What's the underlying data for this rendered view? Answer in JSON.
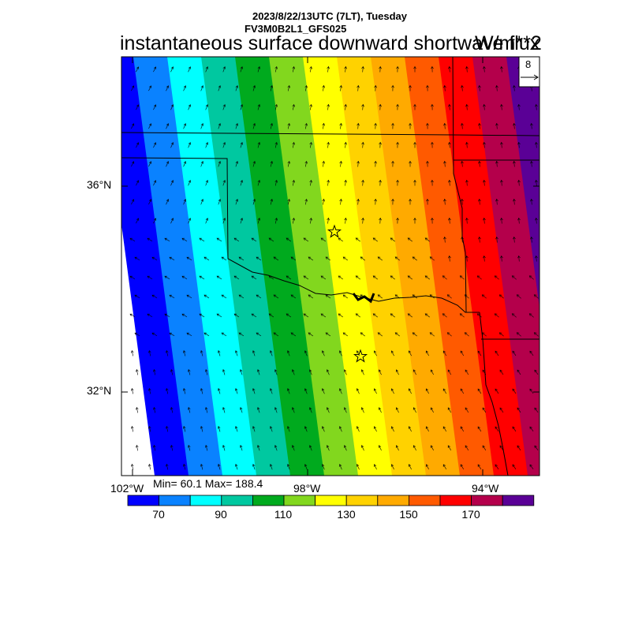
{
  "header": {
    "datetime": "2023/8/22/13UTC (7LT), Tuesday",
    "model": "FV3M0B2L1_GFS025"
  },
  "title": "instantaneous surface downward shortwave flux",
  "units": "W/m**2",
  "reference_vector": {
    "label": "8"
  },
  "axes": {
    "lat_labels": [
      "36°N",
      "32°N"
    ],
    "lon_labels": [
      "102°W",
      "98°W",
      "94°W"
    ]
  },
  "stats": {
    "text": "Min= 60.1 Max= 188.4",
    "min": 60.1,
    "max": 188.4
  },
  "colorbar": {
    "labels": [
      "70",
      "90",
      "110",
      "130",
      "150",
      "170"
    ],
    "colors": [
      "#0000ff",
      "#0a82ff",
      "#00ffff",
      "#00c8a0",
      "#00aa1e",
      "#82d71e",
      "#ffff00",
      "#ffd200",
      "#ffaa00",
      "#ff5a00",
      "#ff0000",
      "#b4004b",
      "#5a0096"
    ]
  },
  "stations": [
    {
      "name": "station-star-north"
    },
    {
      "name": "station-star-south"
    }
  ]
}
